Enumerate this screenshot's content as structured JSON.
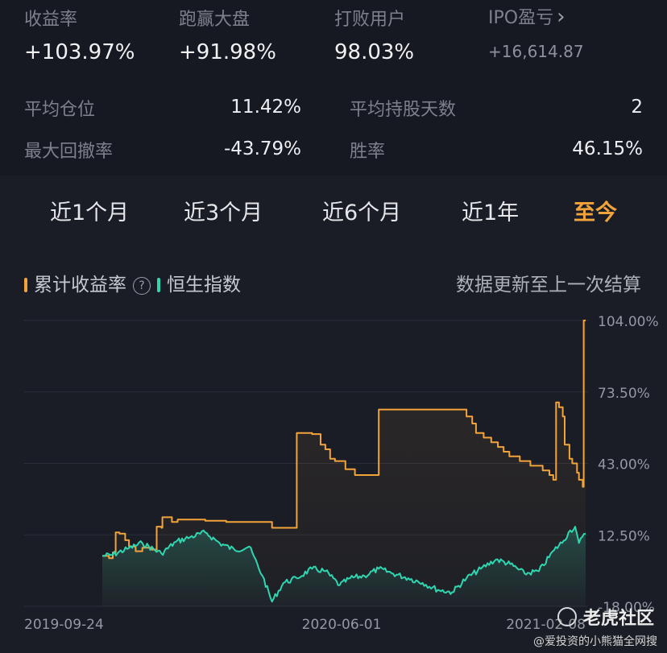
{
  "stats": {
    "return_label": "收益率",
    "return_value": "+103.97%",
    "beat_label": "跑赢大盘",
    "beat_value": "+91.98%",
    "users_label": "打败用户",
    "users_value": "98.03%",
    "ipo_label": "IPO盈亏",
    "ipo_value": "+16,614.87"
  },
  "rows": {
    "avg_position_label": "平均仓位",
    "avg_position_value": "11.42%",
    "avg_hold_label": "平均持股天数",
    "avg_hold_value": "2",
    "max_drawdown_label": "最大回撤率",
    "max_drawdown_value": "-43.79%",
    "win_rate_label": "胜率",
    "win_rate_value": "46.15%"
  },
  "tabs": [
    "近1个月",
    "近3个月",
    "近6个月",
    "近1年",
    "至今"
  ],
  "active_tab": 4,
  "legend": {
    "cumulative": "累计收益率",
    "hsi": "恒生指数",
    "update_note": "数据更新至上一次结算"
  },
  "colors": {
    "cumulative": "#f2a33a",
    "hsi": "#2fd6b0",
    "active_tab": "#f2a33a"
  },
  "watermark": {
    "brand": "老虎社区",
    "sub": "@爱投资的小熊猫全网搜"
  },
  "chart_data": {
    "type": "line",
    "x_ticks": [
      "2019-09-24",
      "2020-06-01",
      "2021-02-08"
    ],
    "y_ticks": [
      "104.00%",
      "73.50%",
      "43.00%",
      "12.50%",
      "-18.00%"
    ],
    "ylim": [
      -18,
      104
    ],
    "grid": true,
    "series": [
      {
        "name": "累计收益率",
        "x": [
          "2019-09-24",
          "2019-10-01",
          "2019-10-05",
          "2019-10-08",
          "2019-10-12",
          "2019-10-15",
          "2019-10-18",
          "2019-10-22",
          "2019-10-29",
          "2019-11-05",
          "2019-11-15",
          "2019-11-20",
          "2019-11-25",
          "2019-11-26",
          "2019-12-05",
          "2019-12-06",
          "2019-12-12",
          "2019-12-16",
          "2020-01-10",
          "2020-02-01",
          "2020-03-01",
          "2020-03-20",
          "2020-04-10",
          "2020-04-15",
          "2020-05-01",
          "2020-05-10",
          "2020-05-15",
          "2020-05-20",
          "2020-05-25",
          "2020-06-01",
          "2020-06-05",
          "2020-06-15",
          "2020-07-10",
          "2020-07-15",
          "2020-07-20",
          "2020-07-30",
          "2020-08-05",
          "2020-08-05",
          "2020-09-20",
          "2020-10-10",
          "2020-10-16",
          "2020-10-20",
          "2020-10-28",
          "2020-11-05",
          "2020-11-12",
          "2020-11-18",
          "2020-11-24",
          "2020-12-05",
          "2020-12-16",
          "2020-12-22",
          "2020-12-29",
          "2021-01-05",
          "2021-01-09",
          "2021-01-12",
          "2021-01-15",
          "2021-01-19",
          "2021-01-21",
          "2021-01-26",
          "2021-01-29",
          "2021-02-03",
          "2021-02-05",
          "2021-02-09",
          "2021-02-10",
          "2021-02-12"
        ],
        "values": [
          3.5,
          2.5,
          5.0,
          13.5,
          13.0,
          13.0,
          10.2,
          7.5,
          5.5,
          7.0,
          6.2,
          16.0,
          15.5,
          20.0,
          20.0,
          18.0,
          19.0,
          19.0,
          18.5,
          18.0,
          18.0,
          15.5,
          15.5,
          56.0,
          55.5,
          51.0,
          49.0,
          45.0,
          44.0,
          44.0,
          40.5,
          38.0,
          66.0,
          66.0,
          66.0,
          66.0,
          66.0,
          66.0,
          66.0,
          63.0,
          60.0,
          56.0,
          54.0,
          52.0,
          50.0,
          48.0,
          46.0,
          44.0,
          42.0,
          42.0,
          40.0,
          38.0,
          36.0,
          69.0,
          67.0,
          63.0,
          51.0,
          45.0,
          43.0,
          39.0,
          36.0,
          33.0,
          104.0,
          104.0
        ],
        "color": "#f2a33a"
      },
      {
        "name": "恒生指数",
        "x": [
          "2019-09-24",
          "2019-10-05",
          "2019-10-20",
          "2019-11-05",
          "2019-11-25",
          "2019-12-10",
          "2019-12-25",
          "2020-01-10",
          "2020-01-25",
          "2020-02-10",
          "2020-02-25",
          "2020-03-10",
          "2020-03-20",
          "2020-04-01",
          "2020-04-15",
          "2020-05-01",
          "2020-05-15",
          "2020-05-30",
          "2020-06-10",
          "2020-06-25",
          "2020-07-10",
          "2020-07-25",
          "2020-08-10",
          "2020-08-25",
          "2020-09-10",
          "2020-09-25",
          "2020-10-10",
          "2020-10-25",
          "2020-11-10",
          "2020-11-25",
          "2020-12-10",
          "2020-12-25",
          "2021-01-10",
          "2021-01-20",
          "2021-01-25",
          "2021-02-01",
          "2021-02-05",
          "2021-02-12"
        ],
        "values": [
          3.5,
          4.0,
          6.5,
          9.0,
          4.5,
          9.5,
          11.5,
          13.5,
          9.0,
          6.0,
          7.5,
          -5.0,
          -16.0,
          -8.0,
          -6.0,
          -2.0,
          -3.0,
          -9.0,
          -6.0,
          -5.0,
          -2.0,
          -4.0,
          -6.0,
          -8.0,
          -11.0,
          -12.0,
          -6.0,
          -2.0,
          2.0,
          0.0,
          -4.0,
          -3.0,
          6.0,
          10.0,
          13.5,
          16.0,
          9.0,
          13.0
        ],
        "color": "#2fd6b0"
      }
    ]
  }
}
